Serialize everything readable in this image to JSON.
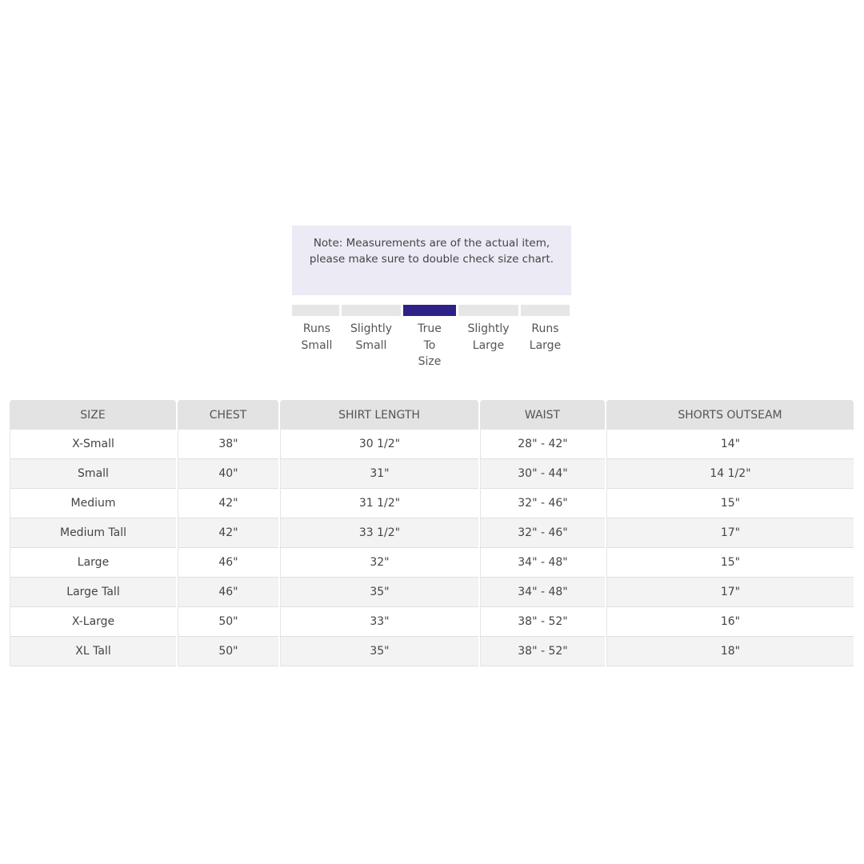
{
  "note": "Note: Measurements are of the actual item, please make sure to double check size chart.",
  "fit_scale": {
    "options": [
      "Runs Small",
      "Slightly Small",
      "True To Size",
      "Slightly Large",
      "Runs Large"
    ],
    "selected": "True To Size",
    "accent_color": "#2e2288"
  },
  "table": {
    "headers": [
      "SIZE",
      "CHEST",
      "SHIRT LENGTH",
      "WAIST",
      "SHORTS OUTSEAM"
    ],
    "rows": [
      [
        "X-Small",
        "38\"",
        "30 1/2\"",
        "28\" - 42\"",
        "14\""
      ],
      [
        "Small",
        "40\"",
        "31\"",
        "30\" - 44\"",
        "14 1/2\""
      ],
      [
        "Medium",
        "42\"",
        "31 1/2\"",
        "32\" - 46\"",
        "15\""
      ],
      [
        "Medium Tall",
        "42\"",
        "33 1/2\"",
        "32\" - 46\"",
        "17\""
      ],
      [
        "Large",
        "46\"",
        "32\"",
        "34\" - 48\"",
        "15\""
      ],
      [
        "Large Tall",
        "46\"",
        "35\"",
        "34\" - 48\"",
        "17\""
      ],
      [
        "X-Large",
        "50\"",
        "33\"",
        "38\" - 52\"",
        "16\""
      ],
      [
        "XL Tall",
        "50\"",
        "35\"",
        "38\" - 52\"",
        "18\""
      ]
    ]
  }
}
